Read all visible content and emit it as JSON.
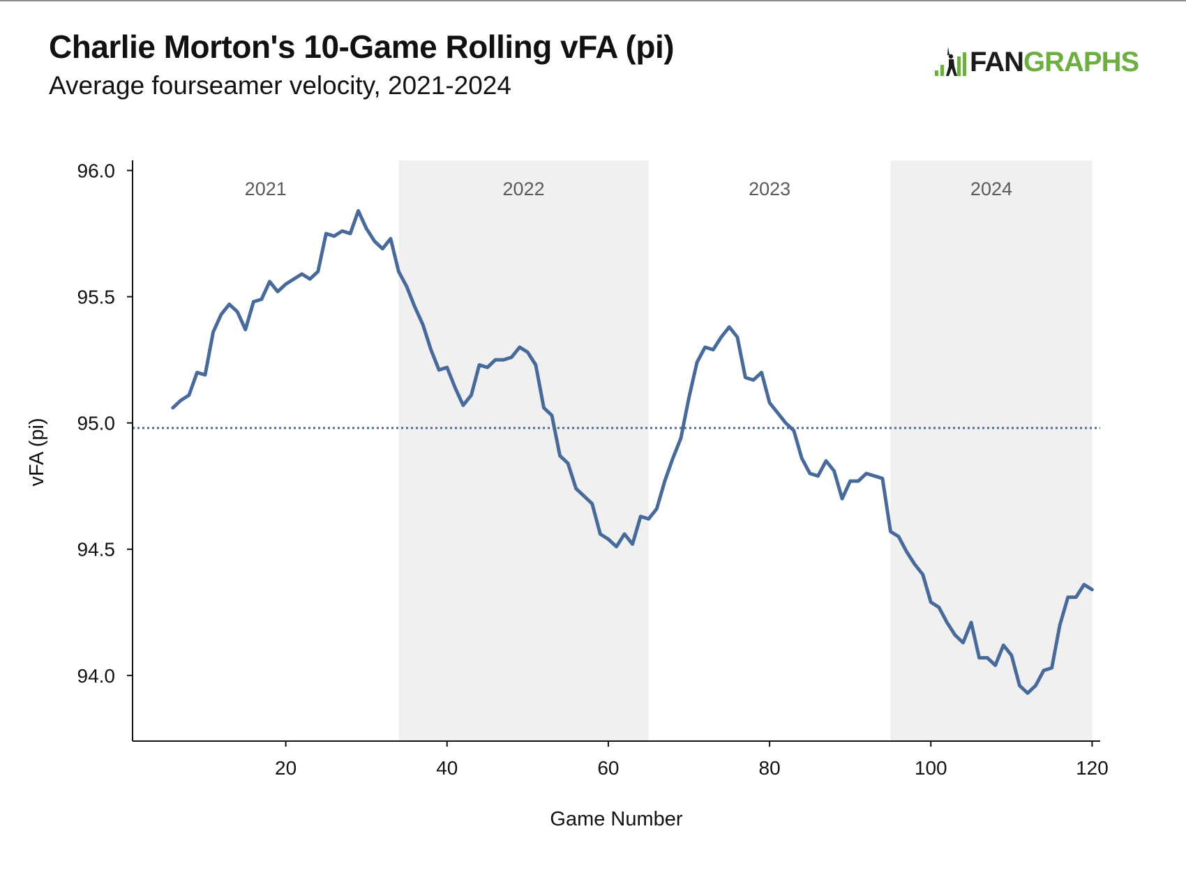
{
  "header": {
    "title": "Charlie Morton's 10-Game Rolling vFA (pi)",
    "subtitle": "Average fourseamer velocity, 2021-2024"
  },
  "logo": {
    "text_dark": "FAN",
    "text_green": "GRAPHS",
    "colors": {
      "dark": "#1b1b1b",
      "green": "#6cae3f"
    },
    "icon": "batter-silhouette-bars-icon"
  },
  "chart_data": {
    "type": "line",
    "title": "Charlie Morton's 10-Game Rolling vFA (pi)",
    "subtitle": "Average fourseamer velocity, 2021-2024",
    "xlabel": "Game Number",
    "ylabel": "vFA (pi)",
    "xlim": [
      1,
      121
    ],
    "ylim": [
      93.74,
      96.04
    ],
    "xticks": [
      20,
      40,
      60,
      80,
      100,
      120
    ],
    "xtick_labels": [
      "20",
      "40",
      "60",
      "80",
      "100",
      "120"
    ],
    "yticks": [
      94.0,
      94.5,
      95.0,
      95.5,
      96.0
    ],
    "ytick_labels": [
      "94.0",
      "94.5",
      "95.0",
      "95.5",
      "96.0"
    ],
    "grid": false,
    "line_color": "#476a9b",
    "reference_line": {
      "y": 94.98,
      "style": "dotted",
      "color": "#476a9b"
    },
    "seasons": [
      {
        "label": "2021",
        "start": 1,
        "end": 34,
        "shaded": false
      },
      {
        "label": "2022",
        "start": 34,
        "end": 65,
        "shaded": true
      },
      {
        "label": "2023",
        "start": 65,
        "end": 95,
        "shaded": false
      },
      {
        "label": "2024",
        "start": 95,
        "end": 120,
        "shaded": true
      }
    ],
    "shade_color": "#f0f0f0",
    "series": [
      {
        "x": [
          6,
          7,
          8,
          9,
          10,
          11,
          12,
          13,
          14,
          15,
          16,
          17,
          18,
          19,
          20,
          21,
          22,
          23,
          24,
          25,
          26,
          27,
          28,
          29,
          30,
          31,
          32,
          33,
          34,
          35,
          36,
          37,
          38,
          39,
          40,
          41,
          42,
          43,
          44,
          45,
          46,
          47,
          48,
          49,
          50,
          51,
          52,
          53,
          54,
          55,
          56,
          57,
          58,
          59,
          60,
          61,
          62,
          63,
          64,
          65,
          66,
          67,
          68,
          69,
          70,
          71,
          72,
          73,
          74,
          75,
          76,
          77,
          78,
          79,
          80,
          81,
          82,
          83,
          84,
          85,
          86,
          87,
          88,
          89,
          90,
          91,
          92,
          93,
          94,
          95,
          96,
          97,
          98,
          99,
          100,
          101,
          102,
          103,
          104,
          105,
          106,
          107,
          108,
          109,
          110,
          111,
          112,
          113,
          114,
          115,
          116,
          117,
          118,
          119,
          120
        ],
        "y": [
          95.06,
          95.09,
          95.11,
          95.2,
          95.19,
          95.36,
          95.43,
          95.47,
          95.44,
          95.37,
          95.48,
          95.49,
          95.56,
          95.52,
          95.55,
          95.57,
          95.59,
          95.57,
          95.6,
          95.75,
          95.74,
          95.76,
          95.75,
          95.84,
          95.77,
          95.72,
          95.69,
          95.73,
          95.6,
          95.54,
          95.46,
          95.39,
          95.29,
          95.21,
          95.22,
          95.14,
          95.07,
          95.11,
          95.23,
          95.22,
          95.25,
          95.25,
          95.26,
          95.3,
          95.28,
          95.23,
          95.06,
          95.03,
          94.87,
          94.84,
          94.74,
          94.71,
          94.68,
          94.56,
          94.54,
          94.51,
          94.56,
          94.52,
          94.63,
          94.62,
          94.66,
          94.77,
          94.86,
          94.94,
          95.1,
          95.24,
          95.3,
          95.29,
          95.34,
          95.38,
          95.34,
          95.18,
          95.17,
          95.2,
          95.08,
          95.04,
          95.0,
          94.97,
          94.86,
          94.8,
          94.79,
          94.85,
          94.81,
          94.7,
          94.77,
          94.77,
          94.8,
          94.79,
          94.78,
          94.57,
          94.55,
          94.49,
          94.44,
          94.4,
          94.29,
          94.27,
          94.21,
          94.16,
          94.13,
          94.21,
          94.07,
          94.07,
          94.04,
          94.12,
          94.08,
          93.96,
          93.93,
          93.96,
          94.02,
          94.03,
          94.2,
          94.31,
          94.31,
          94.36,
          94.34
        ]
      }
    ]
  }
}
